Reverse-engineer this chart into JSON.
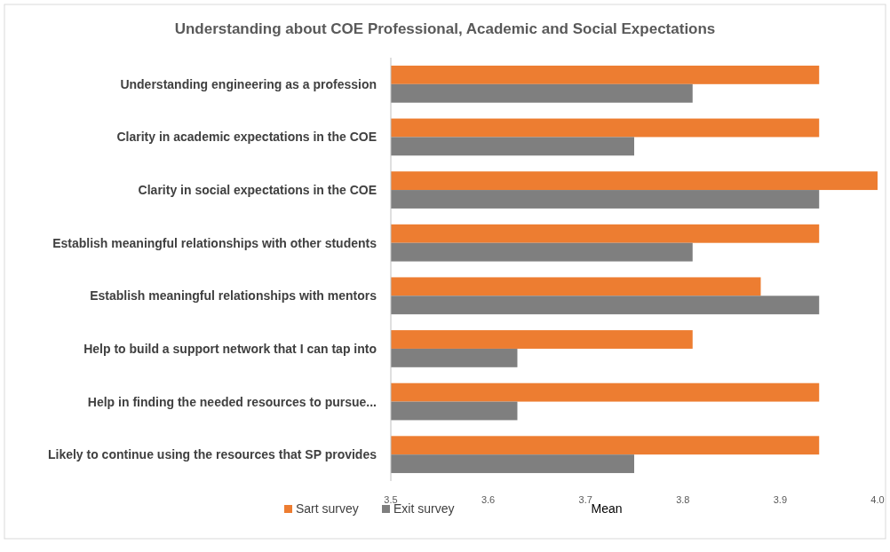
{
  "chart_data": {
    "type": "bar",
    "orientation": "horizontal",
    "title": "Understanding about COE Professional, Academic and Social Expectations",
    "xlabel": "Mean",
    "categories": [
      "Understanding engineering as a profession",
      "Clarity in academic expectations in the COE",
      "Clarity in social expectations in the COE",
      "Establish meaningful relationships with other students",
      "Establish meaningful relationships with mentors",
      "Help to build a support network that I can tap into",
      "Help in finding the needed resources to  pursue...",
      "Likely to continue using the resources that SP provides"
    ],
    "series": [
      {
        "name": "Sart survey",
        "color": "#ed7d31",
        "values": [
          3.94,
          3.94,
          4.0,
          3.94,
          3.88,
          3.81,
          3.94,
          3.94
        ]
      },
      {
        "name": "Exit survey",
        "color": "#7f7f7f",
        "values": [
          3.81,
          3.75,
          3.94,
          3.81,
          3.94,
          3.63,
          3.63,
          3.75
        ]
      }
    ],
    "xlim": [
      3.5,
      4.0
    ],
    "xticks": [
      3.5,
      3.6,
      3.7,
      3.8,
      3.9,
      {
        "value": 4.0,
        "label": "4.0"
      }
    ],
    "grid": false,
    "legend": "bottom left"
  }
}
